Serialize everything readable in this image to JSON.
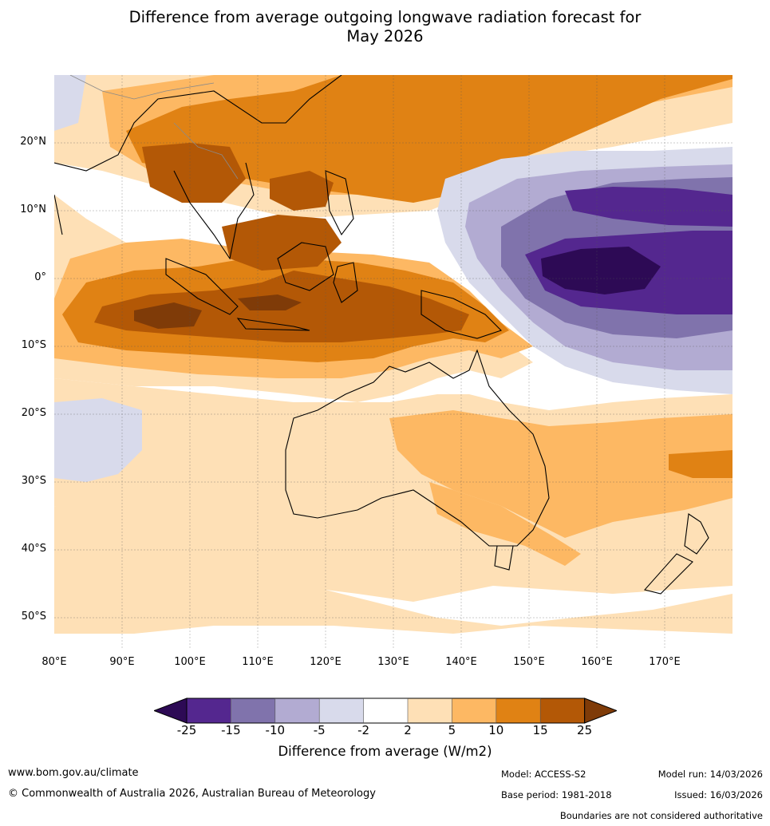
{
  "title": {
    "line1": "Difference from average outgoing longwave radiation forecast for",
    "line2": "May 2026"
  },
  "map": {
    "lat_labels": [
      "20°N",
      "10°N",
      "0°",
      "10°S",
      "20°S",
      "30°S",
      "40°S",
      "50°S"
    ],
    "lon_labels": [
      "80°E",
      "90°E",
      "100°E",
      "110°E",
      "120°E",
      "130°E",
      "140°E",
      "150°E",
      "160°E",
      "170°E"
    ]
  },
  "colorbar": {
    "ticks": [
      "-25",
      "-15",
      "-10",
      "-5",
      "-2",
      "2",
      "5",
      "10",
      "15",
      "25"
    ],
    "colors": {
      "below": "#2d0a55",
      "n25_15": "#54278f",
      "n15_10": "#8073ac",
      "n10_5": "#b2abd2",
      "n5_2": "#d8daeb",
      "n2_2": "#ffffff",
      "p2_5": "#fee0b6",
      "p5_10": "#fdb863",
      "p10_15": "#e08214",
      "p15_25": "#b35806",
      "above": "#7f3b08"
    },
    "label": "Difference from average (W/m2)"
  },
  "footer": {
    "website": "www.bom.gov.au/climate",
    "copyright": "© Commonwealth of Australia 2026, Australian Bureau of Meteorology",
    "model": "Model: ACCESS-S2",
    "base_period": "Base period: 1981-2018",
    "model_run": "Model run: 14/03/2026",
    "issued": "Issued: 16/03/2026",
    "disclaimer": "Boundaries are not considered authoritative"
  }
}
